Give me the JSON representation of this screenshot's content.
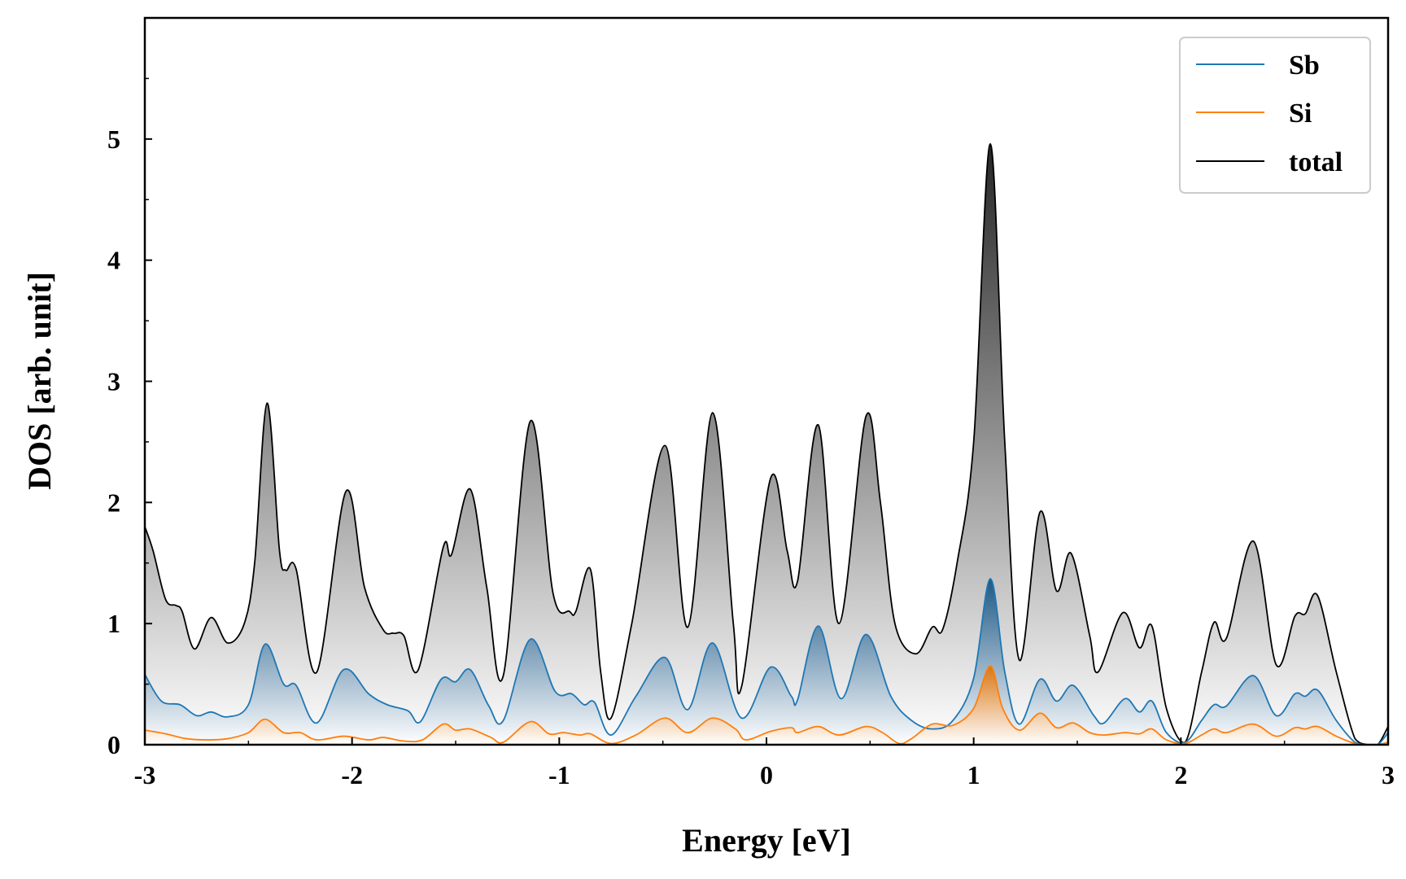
{
  "chart_data": {
    "type": "area",
    "title": "",
    "xlabel": "Energy [eV]",
    "ylabel": "DOS [arb. unit]",
    "xlim": [
      -3,
      3
    ],
    "ylim": [
      0,
      6
    ],
    "x_ticks": [
      -3,
      -2,
      -1,
      0,
      1,
      2,
      3
    ],
    "x_tick_labels": [
      "-3",
      "-2",
      "-1",
      "0",
      "1",
      "2",
      "3"
    ],
    "y_ticks": [
      0,
      1,
      2,
      3,
      4,
      5
    ],
    "y_tick_labels": [
      "0",
      "1",
      "2",
      "3",
      "4",
      "5"
    ],
    "grid": false,
    "legend_position": "top-right",
    "series": [
      {
        "name": "Sb",
        "color": "#1f77b4",
        "points": [
          [
            -3.0,
            0.58
          ],
          [
            -2.92,
            0.36
          ],
          [
            -2.83,
            0.33
          ],
          [
            -2.75,
            0.24
          ],
          [
            -2.68,
            0.27
          ],
          [
            -2.6,
            0.23
          ],
          [
            -2.5,
            0.33
          ],
          [
            -2.42,
            0.83
          ],
          [
            -2.33,
            0.5
          ],
          [
            -2.27,
            0.49
          ],
          [
            -2.17,
            0.18
          ],
          [
            -2.04,
            0.62
          ],
          [
            -1.92,
            0.42
          ],
          [
            -1.83,
            0.33
          ],
          [
            -1.73,
            0.28
          ],
          [
            -1.67,
            0.19
          ],
          [
            -1.57,
            0.54
          ],
          [
            -1.5,
            0.52
          ],
          [
            -1.43,
            0.62
          ],
          [
            -1.34,
            0.32
          ],
          [
            -1.27,
            0.2
          ],
          [
            -1.14,
            0.87
          ],
          [
            -1.02,
            0.44
          ],
          [
            -0.94,
            0.42
          ],
          [
            -0.88,
            0.33
          ],
          [
            -0.83,
            0.35
          ],
          [
            -0.75,
            0.08
          ],
          [
            -0.63,
            0.4
          ],
          [
            -0.49,
            0.72
          ],
          [
            -0.38,
            0.29
          ],
          [
            -0.26,
            0.84
          ],
          [
            -0.12,
            0.22
          ],
          [
            0.02,
            0.64
          ],
          [
            0.12,
            0.4
          ],
          [
            0.15,
            0.37
          ],
          [
            0.25,
            0.98
          ],
          [
            0.36,
            0.38
          ],
          [
            0.48,
            0.91
          ],
          [
            0.6,
            0.4
          ],
          [
            0.7,
            0.2
          ],
          [
            0.8,
            0.13
          ],
          [
            0.9,
            0.2
          ],
          [
            1.0,
            0.55
          ],
          [
            1.08,
            1.37
          ],
          [
            1.15,
            0.6
          ],
          [
            1.22,
            0.17
          ],
          [
            1.32,
            0.54
          ],
          [
            1.4,
            0.36
          ],
          [
            1.48,
            0.49
          ],
          [
            1.58,
            0.24
          ],
          [
            1.63,
            0.18
          ],
          [
            1.73,
            0.38
          ],
          [
            1.8,
            0.27
          ],
          [
            1.86,
            0.36
          ],
          [
            1.93,
            0.1
          ],
          [
            2.02,
            0.02
          ],
          [
            2.1,
            0.2
          ],
          [
            2.16,
            0.33
          ],
          [
            2.22,
            0.32
          ],
          [
            2.35,
            0.57
          ],
          [
            2.46,
            0.24
          ],
          [
            2.55,
            0.42
          ],
          [
            2.6,
            0.4
          ],
          [
            2.66,
            0.45
          ],
          [
            2.75,
            0.2
          ],
          [
            2.84,
            0.02
          ],
          [
            2.9,
            0.0
          ],
          [
            2.95,
            0.0
          ],
          [
            3.0,
            0.1
          ]
        ]
      },
      {
        "name": "Si",
        "color": "#ff7f0e",
        "points": [
          [
            -3.0,
            0.12
          ],
          [
            -2.9,
            0.09
          ],
          [
            -2.8,
            0.05
          ],
          [
            -2.7,
            0.04
          ],
          [
            -2.6,
            0.05
          ],
          [
            -2.5,
            0.1
          ],
          [
            -2.42,
            0.21
          ],
          [
            -2.33,
            0.1
          ],
          [
            -2.25,
            0.1
          ],
          [
            -2.17,
            0.04
          ],
          [
            -2.04,
            0.07
          ],
          [
            -1.92,
            0.04
          ],
          [
            -1.85,
            0.06
          ],
          [
            -1.75,
            0.03
          ],
          [
            -1.66,
            0.04
          ],
          [
            -1.56,
            0.17
          ],
          [
            -1.5,
            0.12
          ],
          [
            -1.43,
            0.13
          ],
          [
            -1.33,
            0.06
          ],
          [
            -1.27,
            0.02
          ],
          [
            -1.14,
            0.19
          ],
          [
            -1.05,
            0.09
          ],
          [
            -0.98,
            0.1
          ],
          [
            -0.9,
            0.08
          ],
          [
            -0.85,
            0.09
          ],
          [
            -0.75,
            0.01
          ],
          [
            -0.63,
            0.08
          ],
          [
            -0.49,
            0.22
          ],
          [
            -0.38,
            0.1
          ],
          [
            -0.26,
            0.22
          ],
          [
            -0.15,
            0.13
          ],
          [
            -0.1,
            0.04
          ],
          [
            0.02,
            0.11
          ],
          [
            0.12,
            0.14
          ],
          [
            0.15,
            0.1
          ],
          [
            0.25,
            0.15
          ],
          [
            0.35,
            0.08
          ],
          [
            0.48,
            0.15
          ],
          [
            0.56,
            0.1
          ],
          [
            0.64,
            0.01
          ],
          [
            0.7,
            0.05
          ],
          [
            0.8,
            0.17
          ],
          [
            0.9,
            0.16
          ],
          [
            1.0,
            0.3
          ],
          [
            1.08,
            0.65
          ],
          [
            1.14,
            0.3
          ],
          [
            1.22,
            0.12
          ],
          [
            1.32,
            0.26
          ],
          [
            1.4,
            0.14
          ],
          [
            1.48,
            0.18
          ],
          [
            1.56,
            0.1
          ],
          [
            1.63,
            0.08
          ],
          [
            1.73,
            0.1
          ],
          [
            1.8,
            0.09
          ],
          [
            1.86,
            0.13
          ],
          [
            1.93,
            0.04
          ],
          [
            2.02,
            0.01
          ],
          [
            2.1,
            0.08
          ],
          [
            2.16,
            0.13
          ],
          [
            2.22,
            0.1
          ],
          [
            2.35,
            0.17
          ],
          [
            2.46,
            0.07
          ],
          [
            2.55,
            0.14
          ],
          [
            2.6,
            0.13
          ],
          [
            2.66,
            0.15
          ],
          [
            2.75,
            0.07
          ],
          [
            2.84,
            0.01
          ],
          [
            2.9,
            0.0
          ],
          [
            2.95,
            0.0
          ],
          [
            3.0,
            0.02
          ]
        ]
      },
      {
        "name": "total",
        "color": "#000000",
        "points": [
          [
            -3.0,
            1.8
          ],
          [
            -2.96,
            1.6
          ],
          [
            -2.9,
            1.2
          ],
          [
            -2.85,
            1.15
          ],
          [
            -2.82,
            1.1
          ],
          [
            -2.76,
            0.79
          ],
          [
            -2.68,
            1.05
          ],
          [
            -2.6,
            0.84
          ],
          [
            -2.52,
            1.0
          ],
          [
            -2.47,
            1.5
          ],
          [
            -2.41,
            2.82
          ],
          [
            -2.35,
            1.6
          ],
          [
            -2.32,
            1.44
          ],
          [
            -2.27,
            1.45
          ],
          [
            -2.17,
            0.6
          ],
          [
            -2.03,
            2.09
          ],
          [
            -1.94,
            1.3
          ],
          [
            -1.85,
            0.95
          ],
          [
            -1.8,
            0.92
          ],
          [
            -1.75,
            0.9
          ],
          [
            -1.68,
            0.62
          ],
          [
            -1.56,
            1.63
          ],
          [
            -1.52,
            1.57
          ],
          [
            -1.43,
            2.11
          ],
          [
            -1.35,
            1.3
          ],
          [
            -1.27,
            0.57
          ],
          [
            -1.14,
            2.67
          ],
          [
            -1.03,
            1.25
          ],
          [
            -0.95,
            1.1
          ],
          [
            -0.92,
            1.1
          ],
          [
            -0.85,
            1.45
          ],
          [
            -0.8,
            0.6
          ],
          [
            -0.75,
            0.22
          ],
          [
            -0.65,
            1.0
          ],
          [
            -0.49,
            2.47
          ],
          [
            -0.38,
            0.97
          ],
          [
            -0.26,
            2.74
          ],
          [
            -0.16,
            1.0
          ],
          [
            -0.12,
            0.48
          ],
          [
            0.02,
            2.2
          ],
          [
            0.1,
            1.6
          ],
          [
            0.15,
            1.35
          ],
          [
            0.25,
            2.64
          ],
          [
            0.35,
            1.0
          ],
          [
            0.48,
            2.71
          ],
          [
            0.55,
            2.0
          ],
          [
            0.62,
            1.0
          ],
          [
            0.72,
            0.75
          ],
          [
            0.8,
            0.97
          ],
          [
            0.85,
            0.95
          ],
          [
            0.92,
            1.5
          ],
          [
            1.0,
            2.5
          ],
          [
            1.08,
            4.96
          ],
          [
            1.15,
            2.5
          ],
          [
            1.22,
            0.7
          ],
          [
            1.32,
            1.92
          ],
          [
            1.4,
            1.27
          ],
          [
            1.47,
            1.58
          ],
          [
            1.56,
            0.9
          ],
          [
            1.6,
            0.6
          ],
          [
            1.72,
            1.09
          ],
          [
            1.8,
            0.8
          ],
          [
            1.86,
            0.98
          ],
          [
            1.93,
            0.3
          ],
          [
            2.02,
            0.02
          ],
          [
            2.1,
            0.6
          ],
          [
            2.16,
            1.01
          ],
          [
            2.22,
            0.88
          ],
          [
            2.35,
            1.68
          ],
          [
            2.46,
            0.66
          ],
          [
            2.55,
            1.06
          ],
          [
            2.6,
            1.08
          ],
          [
            2.66,
            1.23
          ],
          [
            2.75,
            0.6
          ],
          [
            2.84,
            0.05
          ],
          [
            2.9,
            0.0
          ],
          [
            2.95,
            0.0
          ],
          [
            3.0,
            0.15
          ]
        ]
      }
    ]
  }
}
